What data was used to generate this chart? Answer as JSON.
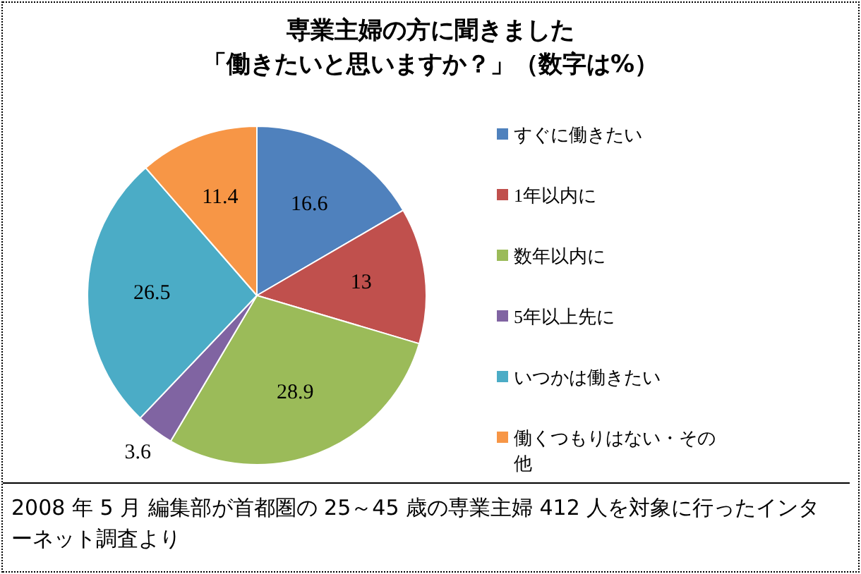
{
  "chart_data": {
    "type": "pie",
    "title": "専業主婦の方に聞きました",
    "subtitle": "「働きたいと思いますか？」（数字は%）",
    "categories": [
      "すぐに働きたい",
      "1年以内に",
      "数年以内に",
      "5年以上先に",
      "いつかは働きたい",
      "働くつもりはない・その他"
    ],
    "values": [
      16.6,
      13,
      28.9,
      3.6,
      26.5,
      11.4
    ],
    "colors": [
      "#4f81bd",
      "#c0504d",
      "#9bbb59",
      "#8064a2",
      "#4bacc6",
      "#f79646"
    ],
    "data_labels": true,
    "legend": "right",
    "annotations": [
      "2008 年 5 月 編集部が首都圏の 25～45 歳の専業主婦 412 人を対象に行ったインターネット調査より"
    ]
  }
}
